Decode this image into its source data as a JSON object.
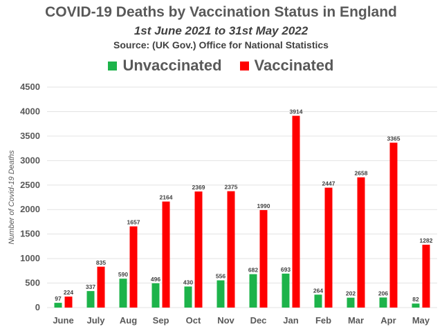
{
  "chart_data": {
    "type": "bar",
    "title": "COVID-19 Deaths by Vaccination Status in England",
    "subtitle": "1st June 2021 to 31st May 2022",
    "source": "Source: (UK Gov.) Office for National Statistics",
    "ylabel": "Number of Covid-19 Deaths",
    "xlabel": "",
    "ylim": [
      0,
      4500
    ],
    "yticks": [
      0,
      500,
      1000,
      1500,
      2000,
      2500,
      3000,
      3500,
      4000,
      4500
    ],
    "grid": true,
    "legend_position": "top",
    "categories": [
      "June",
      "July",
      "Aug",
      "Sep",
      "Oct",
      "Nov",
      "Dec",
      "Jan",
      "Feb",
      "Mar",
      "Apr",
      "May"
    ],
    "series": [
      {
        "name": "Unvaccinated",
        "color": "#1db34a",
        "values": [
          97,
          337,
          590,
          496,
          430,
          556,
          682,
          693,
          264,
          202,
          206,
          82
        ]
      },
      {
        "name": "Vaccinated",
        "color": "#ff0000",
        "values": [
          224,
          835,
          1657,
          2164,
          2369,
          2375,
          1990,
          3914,
          2447,
          2658,
          3365,
          1282
        ]
      }
    ]
  }
}
